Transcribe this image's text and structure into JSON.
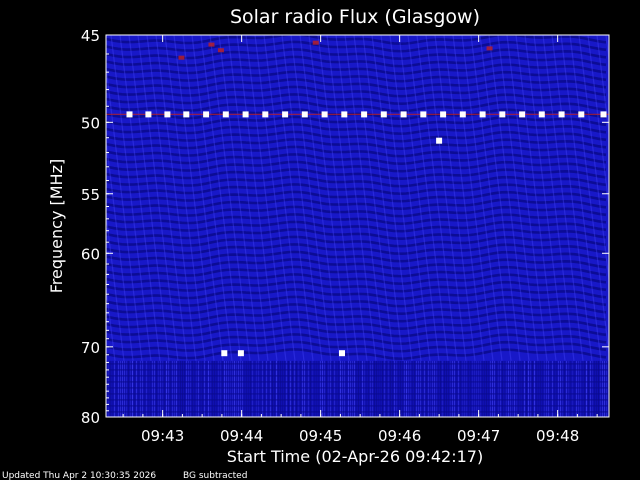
{
  "chart_data": {
    "type": "heatmap",
    "title": "Solar radio Flux (Glasgow)",
    "xlabel": "Start Time (02-Apr-26 09:42:17)",
    "ylabel": "Frequency [MHz]",
    "x_ticks": [
      "09:43",
      "09:44",
      "09:45",
      "09:46",
      "09:47",
      "09:48"
    ],
    "y_ticks": [
      "45",
      "50",
      "55",
      "60",
      "70",
      "80"
    ],
    "x_tick_minutes": [
      43,
      44,
      45,
      46,
      47,
      48
    ],
    "y_tick_values": [
      45,
      50,
      55,
      60,
      70,
      80
    ],
    "x_range_minutes": [
      42.283,
      48.65
    ],
    "y_range_mhz": [
      45,
      80
    ],
    "y_scale": "reciprocal",
    "colors": {
      "background": "#000000",
      "plot_base": "#1818c8",
      "band_dark": "#0a0a8c",
      "band_bright": "#4a4aff",
      "hot": "#c02020",
      "axis": "#ffffff",
      "marker": "#ffffff"
    },
    "interference_line_mhz": 49.5,
    "interference_markers": [
      {
        "minute": 42.58,
        "mhz": 49.5
      },
      {
        "minute": 42.82,
        "mhz": 49.5
      },
      {
        "minute": 43.06,
        "mhz": 49.5
      },
      {
        "minute": 43.3,
        "mhz": 49.5
      },
      {
        "minute": 43.55,
        "mhz": 49.5
      },
      {
        "minute": 43.8,
        "mhz": 49.5
      },
      {
        "minute": 44.05,
        "mhz": 49.5
      },
      {
        "minute": 44.3,
        "mhz": 49.5
      },
      {
        "minute": 44.55,
        "mhz": 49.5
      },
      {
        "minute": 44.8,
        "mhz": 49.5
      },
      {
        "minute": 45.05,
        "mhz": 49.5
      },
      {
        "minute": 45.3,
        "mhz": 49.5
      },
      {
        "minute": 45.55,
        "mhz": 49.5
      },
      {
        "minute": 45.8,
        "mhz": 49.5
      },
      {
        "minute": 46.05,
        "mhz": 49.5
      },
      {
        "minute": 46.3,
        "mhz": 49.5
      },
      {
        "minute": 46.55,
        "mhz": 49.5
      },
      {
        "minute": 46.8,
        "mhz": 49.5
      },
      {
        "minute": 47.05,
        "mhz": 49.5
      },
      {
        "minute": 47.3,
        "mhz": 49.5
      },
      {
        "minute": 47.55,
        "mhz": 49.5
      },
      {
        "minute": 47.8,
        "mhz": 49.5
      },
      {
        "minute": 48.05,
        "mhz": 49.5
      },
      {
        "minute": 48.3,
        "mhz": 49.5
      },
      {
        "minute": 48.58,
        "mhz": 49.5
      },
      {
        "minute": 46.5,
        "mhz": 51.2
      },
      {
        "minute": 43.78,
        "mhz": 70.8
      },
      {
        "minute": 43.99,
        "mhz": 70.8
      },
      {
        "minute": 45.27,
        "mhz": 70.8
      }
    ],
    "grid": false,
    "legend": "none"
  },
  "footer": {
    "updated": "Updated Thu Apr  2 10:30:35 2026",
    "note": "BG subtracted"
  }
}
